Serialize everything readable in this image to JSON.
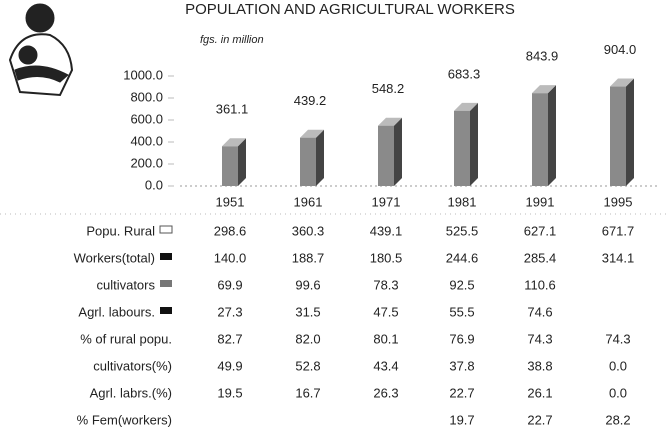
{
  "chart_data": {
    "type": "bar",
    "title": "POPULATION AND AGRICULTURAL WORKERS",
    "subtitle": "fgs. in million",
    "categories": [
      "1951",
      "1961",
      "1971",
      "1981",
      "1991",
      "1995"
    ],
    "values": [
      361.1,
      439.2,
      548.2,
      683.3,
      843.9,
      904.0
    ],
    "value_labels": [
      "361.1",
      "439.2",
      "548.2",
      "683.3",
      "843.9",
      "904.0"
    ],
    "color": "#8a8a8a",
    "ylim": [
      0,
      1000
    ],
    "yticks": [
      {
        "value": 0,
        "label": "0.0"
      },
      {
        "value": 200,
        "label": "200.0"
      },
      {
        "value": 400,
        "label": "400.0"
      },
      {
        "value": 600,
        "label": "600.0"
      },
      {
        "value": 800,
        "label": "800.0"
      },
      {
        "value": 1000,
        "label": "1000.0"
      }
    ]
  },
  "table": {
    "rows": [
      {
        "label": "Popu. Rural",
        "cells": [
          "298.6",
          "360.3",
          "439.1",
          "525.5",
          "627.1",
          "671.7"
        ]
      },
      {
        "label": "Workers(total)",
        "cells": [
          "140.0",
          "188.7",
          "180.5",
          "244.6",
          "285.4",
          "314.1"
        ]
      },
      {
        "label": "cultivators",
        "cells": [
          "69.9",
          "99.6",
          "78.3",
          "92.5",
          "110.6",
          null
        ]
      },
      {
        "label": "Agrl. labours.",
        "cells": [
          "27.3",
          "31.5",
          "47.5",
          "55.5",
          "74.6",
          null
        ]
      },
      {
        "label": "% of rural popu.",
        "cells": [
          "82.7",
          "82.0",
          "80.1",
          "76.9",
          "74.3",
          "74.3"
        ]
      },
      {
        "label": "cultivators(%)",
        "cells": [
          "49.9",
          "52.8",
          "43.4",
          "37.8",
          "38.8",
          "0.0"
        ]
      },
      {
        "label": "Agrl. labrs.(%)",
        "cells": [
          "19.5",
          "16.7",
          "26.3",
          "22.7",
          "26.1",
          "0.0"
        ]
      },
      {
        "label": "% Fem(workers)",
        "cells": [
          null,
          null,
          null,
          "19.7",
          "22.7",
          "28.2"
        ]
      }
    ]
  }
}
